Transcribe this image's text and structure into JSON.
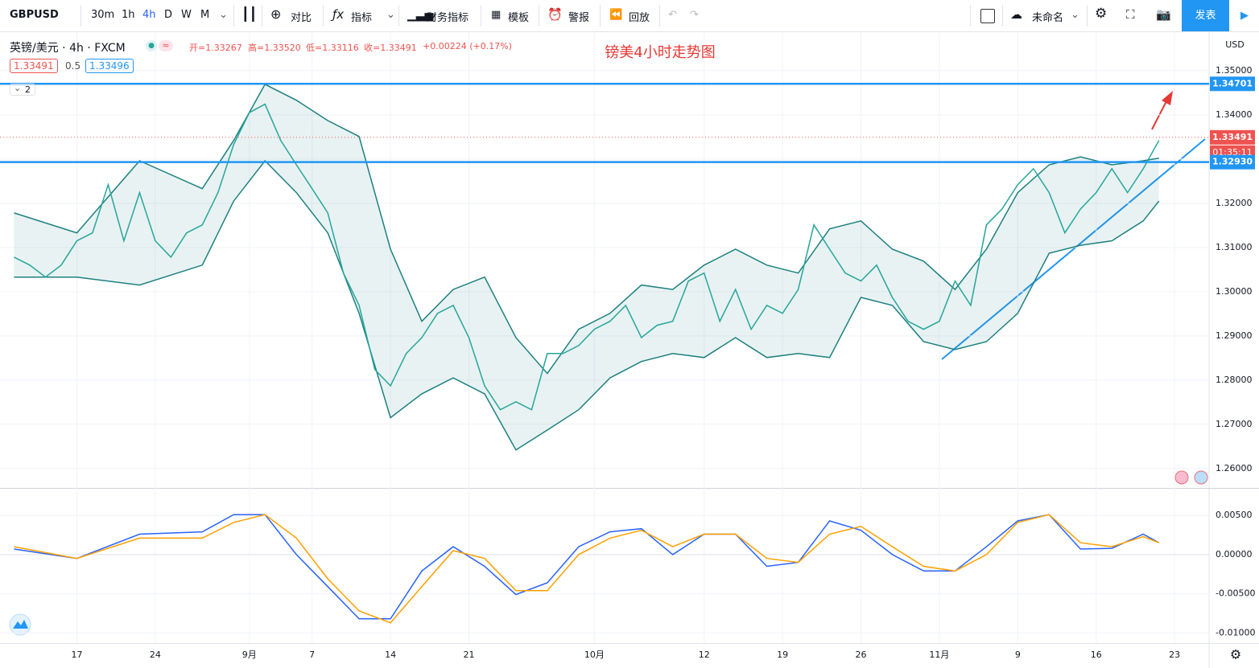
{
  "toolbar": {
    "symbol": "GBPUSD",
    "intervals": [
      "30m",
      "1h",
      "4h",
      "D",
      "W",
      "M"
    ],
    "compare": "对比",
    "indicators": "指标",
    "financials": "财务指标",
    "templates": "模板",
    "alert": "警报",
    "replay": "回放",
    "layout_name": "未命名",
    "publish": "发表"
  },
  "legend": {
    "instrument": "英镑/美元 · 4h · FXCM",
    "ohlc": [
      "开=1.33267",
      "高=1.33520",
      "低=1.33116",
      "收=1.33491",
      "+0.00224 (+0.17%)"
    ],
    "bid": 1.33491,
    "spread": 0.5,
    "ask": 1.33496,
    "indicator_count": 2
  },
  "currency": "USD",
  "chart_data": [
    {
      "type": "line",
      "title": "镑美4小时走势图",
      "xlim": [
        -4.9,
        72.2
      ],
      "xticks": [
        {
          "value": 0,
          "label": "17"
        },
        {
          "value": 5,
          "label": "24"
        },
        {
          "value": 11,
          "label": "9月"
        },
        {
          "value": 15,
          "label": "7"
        },
        {
          "value": 20,
          "label": "14"
        },
        {
          "value": 25,
          "label": "21"
        },
        {
          "value": 33,
          "label": "10月"
        },
        {
          "value": 40,
          "label": "12"
        },
        {
          "value": 45,
          "label": "19"
        },
        {
          "value": 50,
          "label": "26"
        },
        {
          "value": 55,
          "label": "11月"
        },
        {
          "value": 60,
          "label": "9"
        },
        {
          "value": 65,
          "label": "16"
        },
        {
          "value": 70,
          "label": "23"
        }
      ],
      "ylim": [
        1.2556,
        1.3587
      ],
      "yticks": [
        {
          "value": 1.35,
          "label": "1.35000"
        },
        {
          "value": 1.34,
          "label": "1.34000"
        },
        {
          "value": 1.33,
          "label": "1.33000"
        },
        {
          "value": 1.32,
          "label": "1.32000"
        },
        {
          "value": 1.31,
          "label": "1.31000"
        },
        {
          "value": 1.3,
          "label": "1.30000"
        },
        {
          "value": 1.29,
          "label": "1.29000"
        },
        {
          "value": 1.28,
          "label": "1.28000"
        },
        {
          "value": 1.27,
          "label": "1.27000"
        },
        {
          "value": 1.26,
          "label": "1.26000"
        }
      ],
      "grid": true,
      "x": [
        -4,
        -3,
        -2,
        -1,
        0,
        1,
        2,
        3,
        4,
        5,
        6,
        7,
        8,
        9,
        10,
        11,
        12,
        13,
        14,
        15,
        16,
        17,
        18,
        19,
        20,
        21,
        22,
        23,
        24,
        25,
        26,
        27,
        28,
        29,
        30,
        31,
        32,
        33,
        34,
        35,
        36,
        37,
        38,
        39,
        40,
        41,
        42,
        43,
        44,
        45,
        46,
        47,
        48,
        49,
        50,
        51,
        52,
        53,
        54,
        55,
        56,
        57,
        58,
        59,
        60,
        61,
        62,
        63,
        64,
        65,
        66,
        67,
        68,
        69
      ],
      "series": [
        {
          "color": "#26a69a",
          "values": [
            1.3078,
            1.306,
            1.3033,
            1.306,
            1.3115,
            1.3133,
            1.3242,
            1.3115,
            1.3224,
            1.3115,
            1.3078,
            1.3133,
            1.3151,
            1.3224,
            1.3333,
            1.3405,
            1.3424,
            1.3342,
            1.3287,
            1.3233,
            1.3178,
            1.3042,
            1.2969,
            1.2824,
            1.2787,
            1.286,
            1.2896,
            1.2951,
            1.2969,
            1.2896,
            1.2787,
            1.2733,
            1.2751,
            1.2733,
            1.286,
            1.286,
            1.2878,
            1.2915,
            1.2933,
            1.2969,
            1.2896,
            1.2924,
            1.2933,
            1.3024,
            1.3042,
            1.2933,
            1.3005,
            1.2915,
            1.2969,
            1.2951,
            1.3005,
            1.3151,
            1.3096,
            1.3042,
            1.3024,
            1.306,
            1.2987,
            1.2933,
            1.2915,
            1.2933,
            1.3024,
            1.2969,
            1.3151,
            1.3187,
            1.3242,
            1.3278,
            1.3224,
            1.3133,
            1.3187,
            1.3224,
            1.3278,
            1.3224,
            1.3278,
            1.3342
          ]
        }
      ],
      "bands": {
        "color": "#1e8080",
        "x": [
          -4,
          0,
          4,
          8,
          10,
          12,
          14,
          16,
          18,
          20,
          22,
          24,
          26,
          28,
          30,
          32,
          34,
          36,
          38,
          40,
          42,
          44,
          46,
          48,
          50,
          52,
          54,
          56,
          58,
          60,
          62,
          64,
          66,
          68,
          69
        ],
        "upper": [
          1.3178,
          1.3133,
          1.3296,
          1.3233,
          1.3342,
          1.3469,
          1.3433,
          1.3387,
          1.3351,
          1.3096,
          1.2933,
          1.3005,
          1.3033,
          1.2896,
          1.2815,
          1.2915,
          1.2951,
          1.3015,
          1.3005,
          1.306,
          1.3096,
          1.306,
          1.3042,
          1.3142,
          1.316,
          1.3096,
          1.3069,
          1.3005,
          1.3096,
          1.3224,
          1.3287,
          1.3305,
          1.3287,
          1.3296,
          1.3302
        ],
        "lower": [
          1.3033,
          1.3033,
          1.3015,
          1.306,
          1.3205,
          1.3296,
          1.3224,
          1.3133,
          1.2951,
          1.2715,
          1.2769,
          1.2805,
          1.2769,
          1.2642,
          1.2687,
          1.2733,
          1.2805,
          1.2842,
          1.286,
          1.2851,
          1.2896,
          1.2851,
          1.286,
          1.2851,
          1.2987,
          1.2969,
          1.2887,
          1.2869,
          1.2887,
          1.2951,
          1.3087,
          1.3105,
          1.3115,
          1.316,
          1.3205
        ]
      },
      "levels": [
        1.34701,
        {
          "value": 1.3293,
          "label": "1.32930"
        }
      ],
      "level_color": "#2196f3",
      "last_price": 1.33491,
      "last_color": "#ef5350",
      "countdown": "01:35:11"
    },
    {
      "type": "line",
      "xlim": [
        -4.9,
        72.2
      ],
      "ylim": [
        -0.0113,
        0.0084
      ],
      "yticks": [
        {
          "value": 0.005,
          "label": "0.00500"
        },
        {
          "value": 0,
          "label": "0.00000"
        },
        {
          "value": -0.005,
          "label": "-0.00500"
        },
        {
          "value": -0.01,
          "label": "-0.01000"
        }
      ],
      "x": [
        -4,
        0,
        4,
        8,
        10,
        12,
        14,
        16,
        18,
        20,
        22,
        24,
        26,
        28,
        30,
        32,
        34,
        36,
        38,
        40,
        42,
        44,
        46,
        48,
        50,
        52,
        54,
        56,
        58,
        60,
        62,
        64,
        66,
        68,
        69
      ],
      "series": [
        {
          "color": "#2962ff",
          "values": [
            0.0007,
            -0.0005,
            0.0026,
            0.0029,
            0.0051,
            0.0051,
            0,
            -0.0041,
            -0.0082,
            -0.0082,
            -0.0021,
            0.001,
            -0.0015,
            -0.0051,
            -0.0036,
            0.001,
            0.0029,
            0.0033,
            0,
            0.0026,
            0.0026,
            -0.0015,
            -0.001,
            0.0043,
            0.0031,
            0,
            -0.0021,
            -0.0021,
            0.001,
            0.0043,
            0.0051,
            0.0007,
            0.0008,
            0.0026,
            0.0015
          ]
        },
        {
          "color": "#ffa000",
          "values": [
            0.001,
            -0.0005,
            0.0021,
            0.0021,
            0.0041,
            0.0051,
            0.0021,
            -0.0031,
            -0.0072,
            -0.0087,
            -0.0041,
            0.0005,
            -0.0005,
            -0.0046,
            -0.0046,
            0,
            0.0021,
            0.0031,
            0.001,
            0.0026,
            0.0026,
            -0.0005,
            -0.001,
            0.0026,
            0.0036,
            0.001,
            -0.0015,
            -0.0021,
            0,
            0.0041,
            0.0051,
            0.0015,
            0.001,
            0.0023,
            0.0015
          ]
        }
      ]
    }
  ]
}
